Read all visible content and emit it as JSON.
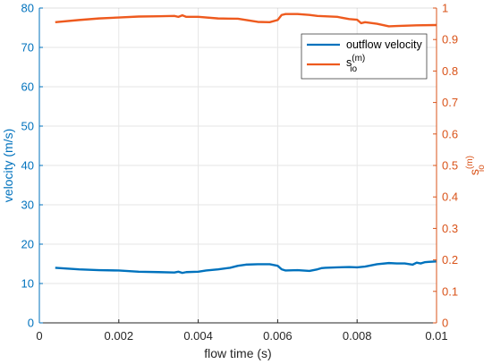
{
  "colors": {
    "left_axis": "#0072BD",
    "right_axis": "#D95319",
    "velocity": "#0072BD",
    "sio": "#EE5A1E",
    "grid": "#e6e6e6",
    "x_axis": "#262626"
  },
  "chart_data": {
    "type": "line",
    "xlabel": "flow time (s)",
    "ylabel_left": "velocity (m/s)",
    "ylabel_right": {
      "base": "s",
      "sup": "(m)",
      "sub": "io"
    },
    "xlim": [
      0,
      0.01
    ],
    "ylim_left": [
      0,
      80
    ],
    "ylim_right": [
      0,
      1
    ],
    "grid": true,
    "legend_position": "top-right",
    "x_ticks": [
      0,
      0.002,
      0.004,
      0.006,
      0.008,
      0.01
    ],
    "x_tick_labels": [
      "0",
      "0.002",
      "0.004",
      "0.006",
      "0.008",
      "0.01"
    ],
    "y_left_ticks": [
      0,
      10,
      20,
      30,
      40,
      50,
      60,
      70,
      80
    ],
    "y_left_tick_labels": [
      "0",
      "10",
      "20",
      "30",
      "40",
      "50",
      "60",
      "70",
      "80"
    ],
    "y_right_ticks": [
      0,
      0.1,
      0.2,
      0.3,
      0.4,
      0.5,
      0.6,
      0.7,
      0.8,
      0.9,
      1
    ],
    "y_right_tick_labels": [
      "0",
      "0.1",
      "0.2",
      "0.3",
      "0.4",
      "0.5",
      "0.6",
      "0.7",
      "0.8",
      "0.9",
      "1"
    ],
    "series": [
      {
        "name": "outflow velocity",
        "axis": "left",
        "x": [
          0.0004,
          0.001,
          0.0015,
          0.002,
          0.0025,
          0.003,
          0.0034,
          0.0035,
          0.0036,
          0.0037,
          0.004,
          0.0042,
          0.0045,
          0.0048,
          0.005,
          0.0052,
          0.0055,
          0.0058,
          0.006,
          0.0061,
          0.0062,
          0.0065,
          0.0068,
          0.007,
          0.0071,
          0.0072,
          0.0075,
          0.0078,
          0.008,
          0.0082,
          0.0085,
          0.0088,
          0.009,
          0.0092,
          0.0094,
          0.0095,
          0.0096,
          0.0097,
          0.0098,
          0.01
        ],
        "values": [
          14.0,
          13.6,
          13.4,
          13.3,
          13.0,
          12.9,
          12.8,
          13.0,
          12.7,
          12.9,
          13.0,
          13.3,
          13.6,
          14.0,
          14.5,
          14.8,
          14.9,
          14.9,
          14.5,
          13.6,
          13.3,
          13.4,
          13.2,
          13.6,
          13.9,
          14.0,
          14.1,
          14.2,
          14.1,
          14.3,
          14.9,
          15.2,
          15.1,
          15.1,
          14.8,
          15.3,
          15.1,
          15.4,
          15.5,
          15.6
        ]
      },
      {
        "name": "sio",
        "axis": "right",
        "x": [
          0.0004,
          0.001,
          0.0015,
          0.002,
          0.0025,
          0.003,
          0.0034,
          0.0035,
          0.0036,
          0.0037,
          0.004,
          0.0045,
          0.005,
          0.0055,
          0.0058,
          0.006,
          0.0061,
          0.0062,
          0.0065,
          0.0068,
          0.007,
          0.0075,
          0.0078,
          0.008,
          0.0081,
          0.0082,
          0.0085,
          0.0088,
          0.009,
          0.0095,
          0.01
        ],
        "values": [
          0.955,
          0.962,
          0.967,
          0.97,
          0.973,
          0.974,
          0.975,
          0.972,
          0.977,
          0.972,
          0.972,
          0.967,
          0.966,
          0.956,
          0.955,
          0.962,
          0.978,
          0.981,
          0.981,
          0.978,
          0.975,
          0.972,
          0.965,
          0.963,
          0.952,
          0.955,
          0.95,
          0.942,
          0.943,
          0.945,
          0.946
        ]
      }
    ],
    "legend": {
      "velocity_label": "outflow velocity",
      "sio_label": {
        "base": "s",
        "sup": "(m)",
        "sub": "io"
      }
    }
  }
}
